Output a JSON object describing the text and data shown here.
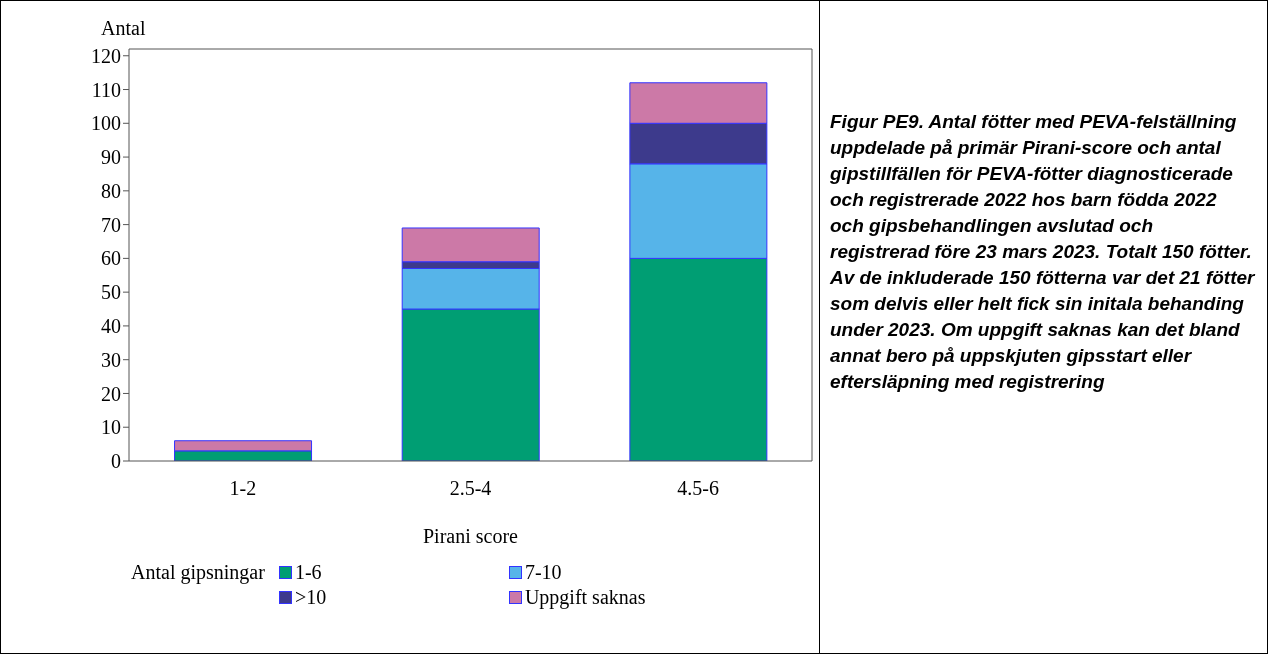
{
  "chart_data": {
    "type": "bar",
    "stacked": true,
    "ylabel": "Antal",
    "xlabel": "Pirani score",
    "legend_title": "Antal gipsningar",
    "legend": "bottom",
    "categories": [
      "1-2",
      "2.5-4",
      "4.5-6"
    ],
    "series": [
      {
        "name": "1-6",
        "color": "#009e73",
        "values": [
          3,
          45,
          60
        ]
      },
      {
        "name": "7-10",
        "color": "#56b4e9",
        "values": [
          0,
          12,
          28
        ]
      },
      {
        "name": ">10",
        "color": "#3d3a8c",
        "values": [
          0,
          2,
          12
        ]
      },
      {
        "name": "Uppgift saknas",
        "color": "#cc79a7",
        "values": [
          3,
          10,
          12
        ]
      }
    ],
    "ylim": [
      0,
      122
    ],
    "yticks": [
      0,
      10,
      20,
      30,
      40,
      50,
      60,
      70,
      80,
      90,
      100,
      110,
      120
    ],
    "annotations": [
      "Figur PE9. Antal fötter med PEVA-felställning uppdelade på primär Pirani-score och antal gipstillfällen för PEVA-fötter diagnosticerade och registrerade 2022 hos barn födda 2022 och gipsbehandlingen avslutad och registrerad före 23 mars 2023. Totalt 150 fötter. Av de inkluderade 150 fötterna var det 21 fötter som delvis eller helt fick sin initala behanding under 2023. Om uppgift saknas kan det bland annat bero på uppskjuten gipsstart eller eftersläpning med registrering"
    ]
  }
}
